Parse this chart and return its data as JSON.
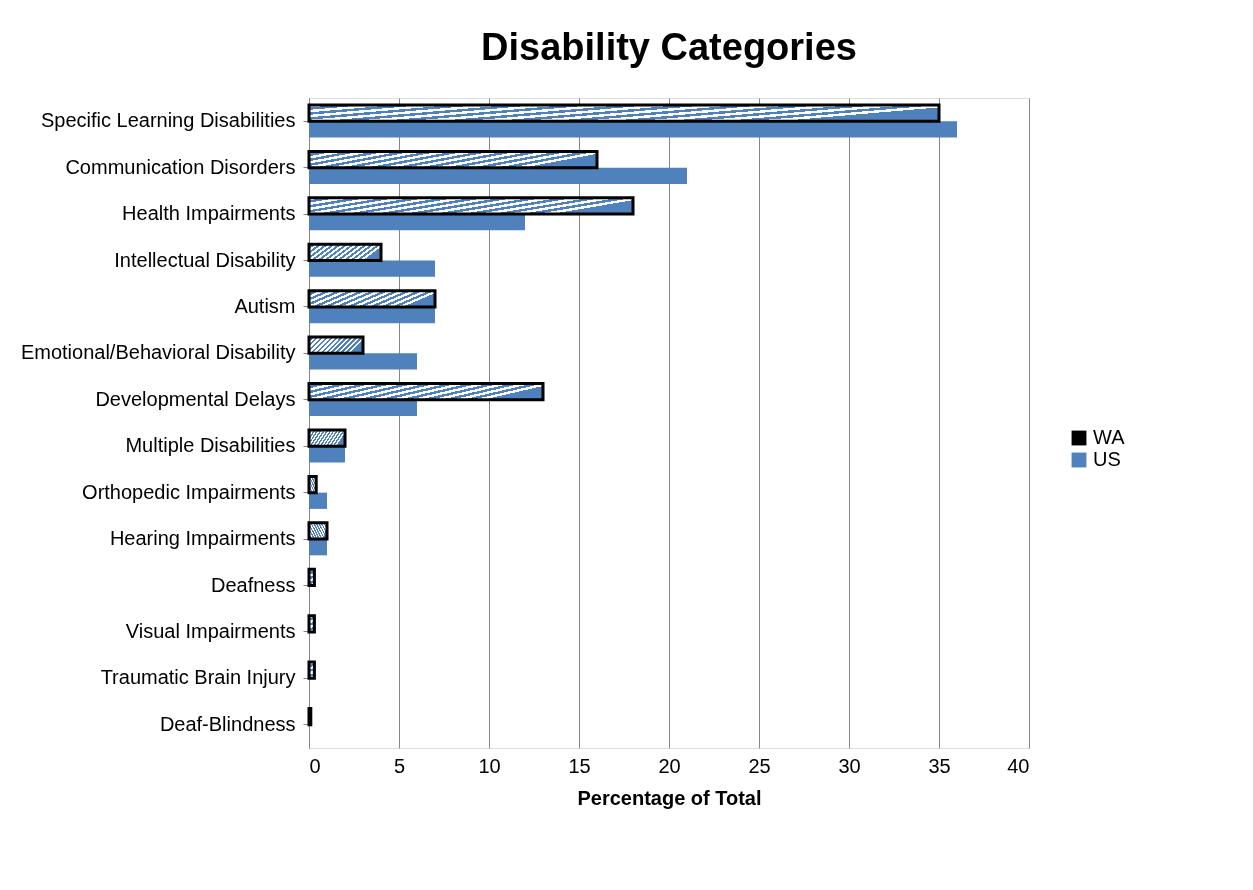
{
  "chart_data": {
    "type": "bar",
    "orientation": "horizontal",
    "title": "Disability Categories",
    "xlabel": "Percentage of Total",
    "categories": [
      "Specific Learning Disabilities",
      "Communication Disorders",
      "Health Impairments",
      "Intellectual Disability",
      "Autism",
      "Emotional/Behavioral Disability",
      "Developmental Delays",
      "Multiple Disabilities",
      "Orthopedic Impairments",
      "Hearing Impairments",
      "Deafness",
      "Visual Impairments",
      "Traumatic Brain Injury",
      "Deaf-Blindness"
    ],
    "series": [
      {
        "name": "WA",
        "color": "#000000",
        "values": [
          35,
          16,
          18,
          4,
          7,
          3,
          13,
          2,
          0.4,
          1,
          0.3,
          0.3,
          0.3,
          0.1
        ]
      },
      {
        "name": "US",
        "color": "#4f81bd",
        "values": [
          36,
          21,
          12,
          7,
          7,
          6,
          6,
          2,
          1,
          1,
          0,
          0,
          0,
          0
        ]
      }
    ],
    "xlim": [
      0,
      40
    ],
    "xticks": [
      0,
      5,
      10,
      15,
      20,
      25,
      30,
      35,
      40
    ],
    "grid": "x",
    "legend": "right"
  }
}
